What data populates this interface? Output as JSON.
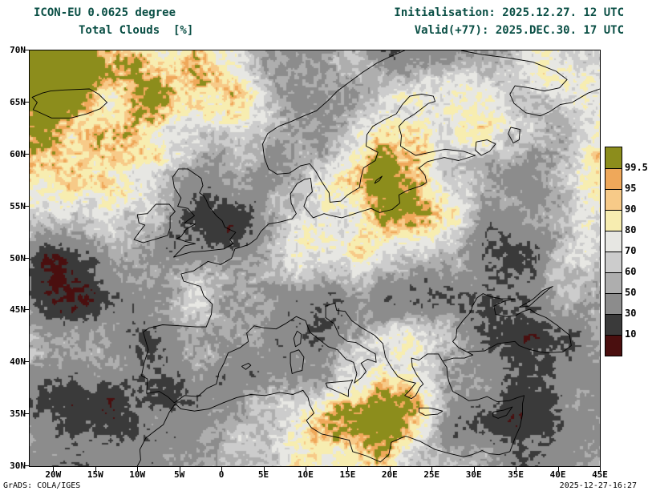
{
  "header": {
    "model_title": "ICON-EU 0.0625 degree",
    "variable_title": "Total Clouds  [%]",
    "initialisation": "Initialisation: 2025.12.27. 12 UTC",
    "valid": "Valid(+77): 2025.DEC.30. 17 UTC"
  },
  "map": {
    "extent": {
      "lon_min": -22.8,
      "lon_max": 45.0,
      "lat_min": 30,
      "lat_max": 70
    },
    "lon_ticks": [
      {
        "label": "20W",
        "lon": -20
      },
      {
        "label": "15W",
        "lon": -15
      },
      {
        "label": "10W",
        "lon": -10
      },
      {
        "label": "5W",
        "lon": -5
      },
      {
        "label": "0",
        "lon": 0
      },
      {
        "label": "5E",
        "lon": 5
      },
      {
        "label": "10E",
        "lon": 10
      },
      {
        "label": "15E",
        "lon": 15
      },
      {
        "label": "20E",
        "lon": 20
      },
      {
        "label": "25E",
        "lon": 25
      },
      {
        "label": "30E",
        "lon": 30
      },
      {
        "label": "35E",
        "lon": 35
      },
      {
        "label": "40E",
        "lon": 40
      },
      {
        "label": "45E",
        "lon": 45
      }
    ],
    "lat_ticks": [
      {
        "label": "70N",
        "lat": 70
      },
      {
        "label": "65N",
        "lat": 65
      },
      {
        "label": "60N",
        "lat": 60
      },
      {
        "label": "55N",
        "lat": 55
      },
      {
        "label": "50N",
        "lat": 50
      },
      {
        "label": "45N",
        "lat": 45
      },
      {
        "label": "40N",
        "lat": 40
      },
      {
        "label": "35N",
        "lat": 35
      },
      {
        "label": "30N",
        "lat": 30
      }
    ]
  },
  "colorbar": {
    "boundary_labels": [
      "99.5",
      "95",
      "90",
      "80",
      "70",
      "60",
      "50",
      "30",
      "10"
    ],
    "segment_colors_top_to_bottom": [
      "#8c8d1c",
      "#efa85a",
      "#f7ca88",
      "#f7edb0",
      "#e7e7e3",
      "#cccccc",
      "#aeaeae",
      "#8c8c8c",
      "#3a3a3a",
      "#4a0f0f"
    ]
  },
  "palette": {
    "thresholds": [
      10,
      30,
      50,
      60,
      70,
      80,
      90,
      95,
      99.5
    ],
    "colors_ascending": [
      "#4a0f0f",
      "#3a3a3a",
      "#8c8c8c",
      "#aeaeae",
      "#cccccc",
      "#e7e7e3",
      "#f7edb0",
      "#f7ca88",
      "#efa85a",
      "#8c8d1c"
    ]
  },
  "footer": {
    "credit": "GrADS: COLA/IGES",
    "timestamp": "2025-12-27-16:27"
  },
  "colors": {
    "title_text": "#0a4f45",
    "axis_text": "#000000",
    "coastline": "#000000",
    "background": "#ffffff"
  }
}
